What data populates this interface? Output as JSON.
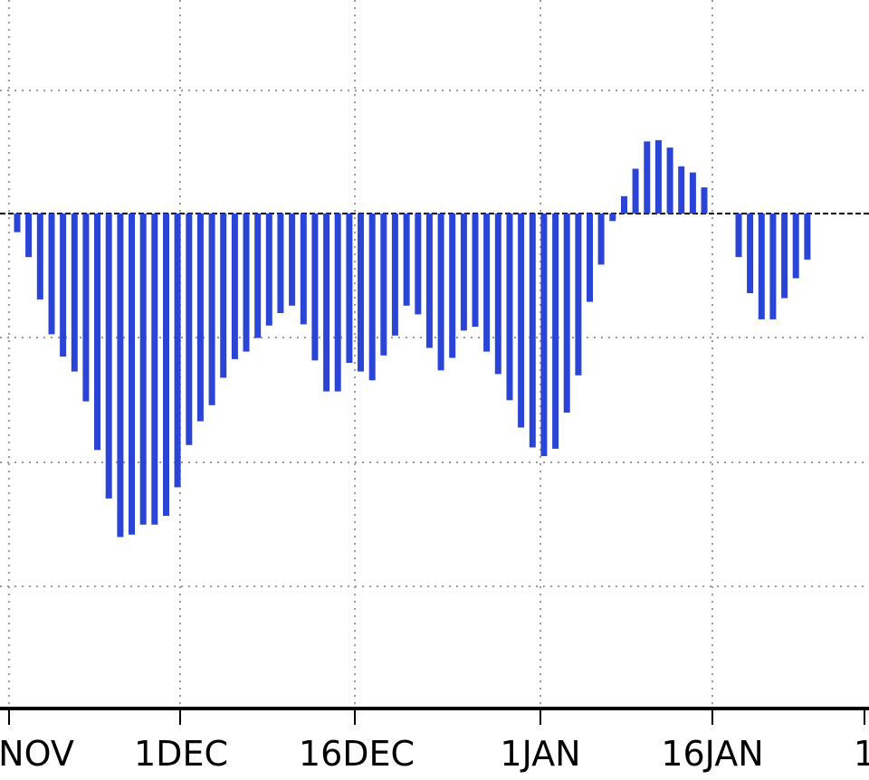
{
  "chart_data": {
    "type": "bar",
    "title": "",
    "xlabel": "",
    "ylabel": "",
    "x_tick_labels": [
      "NOV",
      "1DEC",
      "16DEC",
      "1JAN",
      "16JAN",
      "1"
    ],
    "y_gridlines": 6,
    "grid": true,
    "colors": {
      "bar": "#2a45d6",
      "grid": "#9a9a9a",
      "axis": "#000000",
      "zero_line": "#000000"
    },
    "values": [
      -0.15,
      -0.35,
      -0.69,
      -0.97,
      -1.15,
      -1.27,
      -1.51,
      -1.9,
      -2.29,
      -2.6,
      -2.58,
      -2.5,
      -2.5,
      -2.43,
      -2.2,
      -1.86,
      -1.67,
      -1.54,
      -1.32,
      -1.17,
      -1.11,
      -1.0,
      -0.9,
      -0.8,
      -0.74,
      -0.89,
      -1.18,
      -1.43,
      -1.43,
      -1.2,
      -1.27,
      -1.34,
      -1.14,
      -0.98,
      -0.74,
      -0.81,
      -1.08,
      -1.26,
      -1.16,
      -0.94,
      -0.91,
      -1.11,
      -1.29,
      -1.5,
      -1.72,
      -1.88,
      -1.95,
      -1.89,
      -1.6,
      -1.3,
      -0.71,
      -0.41,
      -0.06,
      0.14,
      0.36,
      0.58,
      0.59,
      0.53,
      0.38,
      0.33,
      0.21,
      0.0,
      0.0,
      -0.35,
      -0.64,
      -0.85,
      -0.85,
      -0.68,
      -0.52,
      -0.37
    ],
    "series": [
      {
        "values": "see values"
      }
    ]
  }
}
